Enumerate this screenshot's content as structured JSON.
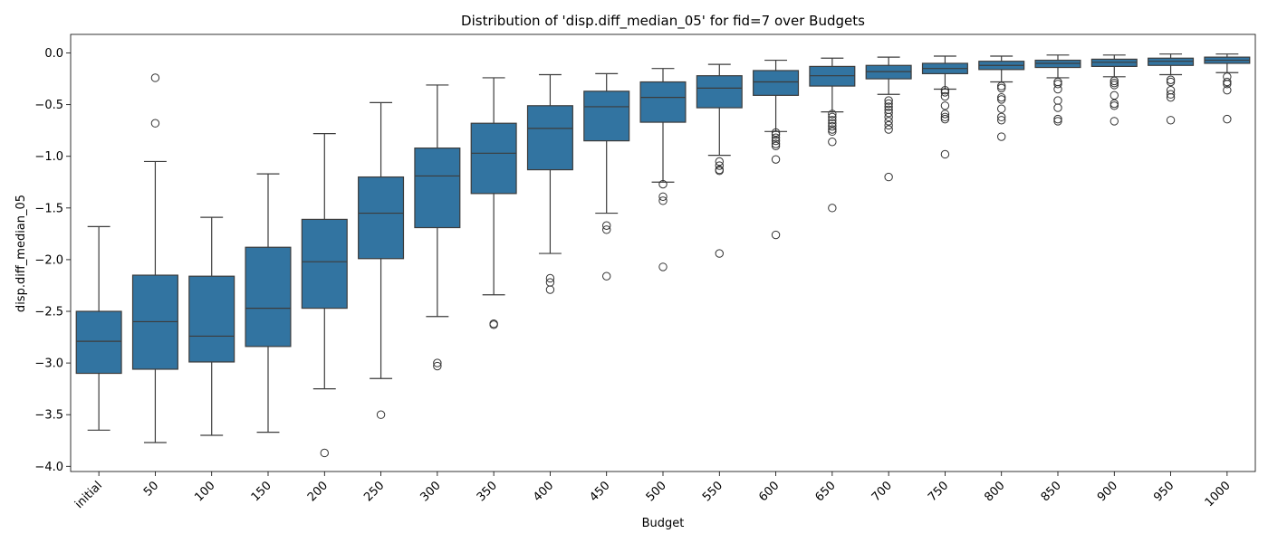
{
  "chart_data": {
    "type": "box",
    "title": "Distribution of 'disp.diff_median_05' for fid=7 over Budgets",
    "xlabel": "Budget",
    "ylabel": "disp.diff_median_05",
    "ylim": [
      -4.05,
      0.18
    ],
    "yticks": [
      0.0,
      -0.5,
      -1.0,
      -1.5,
      -2.0,
      -2.5,
      -3.0,
      -3.5,
      -4.0
    ],
    "ytick_labels": [
      "0.0",
      "−0.5",
      "−1.0",
      "−1.5",
      "−2.0",
      "−2.5",
      "−3.0",
      "−3.5",
      "−4.0"
    ],
    "box_color": "#3274a1",
    "line_color": "#3c3c3c",
    "grid": false,
    "boxes": [
      {
        "category": "initial",
        "whisker_low": -3.65,
        "q1": -3.1,
        "median": -2.79,
        "q3": -2.5,
        "whisker_high": -1.68,
        "outliers": []
      },
      {
        "category": "50",
        "whisker_low": -3.77,
        "q1": -3.06,
        "median": -2.6,
        "q3": -2.15,
        "whisker_high": -1.05,
        "outliers": [
          -0.24,
          -0.68
        ]
      },
      {
        "category": "100",
        "whisker_low": -3.7,
        "q1": -2.99,
        "median": -2.74,
        "q3": -2.16,
        "whisker_high": -1.59,
        "outliers": []
      },
      {
        "category": "150",
        "whisker_low": -3.67,
        "q1": -2.84,
        "median": -2.47,
        "q3": -1.88,
        "whisker_high": -1.17,
        "outliers": []
      },
      {
        "category": "200",
        "whisker_low": -3.25,
        "q1": -2.47,
        "median": -2.02,
        "q3": -1.61,
        "whisker_high": -0.78,
        "outliers": [
          -3.87
        ]
      },
      {
        "category": "250",
        "whisker_low": -3.15,
        "q1": -1.99,
        "median": -1.55,
        "q3": -1.2,
        "whisker_high": -0.48,
        "outliers": [
          -3.5
        ]
      },
      {
        "category": "300",
        "whisker_low": -2.55,
        "q1": -1.69,
        "median": -1.19,
        "q3": -0.92,
        "whisker_high": -0.31,
        "outliers": [
          -3.0,
          -3.03
        ]
      },
      {
        "category": "350",
        "whisker_low": -2.34,
        "q1": -1.36,
        "median": -0.97,
        "q3": -0.68,
        "whisker_high": -0.24,
        "outliers": [
          -2.62,
          -2.63
        ]
      },
      {
        "category": "400",
        "whisker_low": -1.94,
        "q1": -1.13,
        "median": -0.73,
        "q3": -0.51,
        "whisker_high": -0.21,
        "outliers": [
          -2.18,
          -2.22,
          -2.29
        ]
      },
      {
        "category": "450",
        "whisker_low": -1.55,
        "q1": -0.85,
        "median": -0.52,
        "q3": -0.37,
        "whisker_high": -0.2,
        "outliers": [
          -1.67,
          -1.71,
          -2.16
        ]
      },
      {
        "category": "500",
        "whisker_low": -1.25,
        "q1": -0.67,
        "median": -0.43,
        "q3": -0.28,
        "whisker_high": -0.15,
        "outliers": [
          -1.27,
          -1.39,
          -1.43,
          -2.07
        ]
      },
      {
        "category": "550",
        "whisker_low": -0.99,
        "q1": -0.53,
        "median": -0.34,
        "q3": -0.22,
        "whisker_high": -0.11,
        "outliers": [
          -1.05,
          -1.09,
          -1.13,
          -1.14,
          -1.94
        ]
      },
      {
        "category": "600",
        "whisker_low": -0.76,
        "q1": -0.41,
        "median": -0.28,
        "q3": -0.17,
        "whisker_high": -0.07,
        "outliers": [
          -0.77,
          -0.79,
          -0.82,
          -0.85,
          -0.88,
          -0.9,
          -1.03,
          -1.76
        ]
      },
      {
        "category": "650",
        "whisker_low": -0.57,
        "q1": -0.32,
        "median": -0.22,
        "q3": -0.13,
        "whisker_high": -0.05,
        "outliers": [
          -0.59,
          -0.62,
          -0.65,
          -0.68,
          -0.71,
          -0.74,
          -0.76,
          -0.86,
          -1.5
        ]
      },
      {
        "category": "700",
        "whisker_low": -0.4,
        "q1": -0.25,
        "median": -0.18,
        "q3": -0.12,
        "whisker_high": -0.04,
        "outliers": [
          -0.46,
          -0.49,
          -0.52,
          -0.55,
          -0.58,
          -0.62,
          -0.66,
          -0.7,
          -0.74,
          -1.2
        ]
      },
      {
        "category": "750",
        "whisker_low": -0.35,
        "q1": -0.2,
        "median": -0.15,
        "q3": -0.1,
        "whisker_high": -0.03,
        "outliers": [
          -0.36,
          -0.38,
          -0.42,
          -0.51,
          -0.59,
          -0.62,
          -0.64,
          -0.98
        ]
      },
      {
        "category": "800",
        "whisker_low": -0.28,
        "q1": -0.16,
        "median": -0.12,
        "q3": -0.08,
        "whisker_high": -0.03,
        "outliers": [
          -0.32,
          -0.34,
          -0.43,
          -0.45,
          -0.54,
          -0.62,
          -0.65,
          -0.81
        ]
      },
      {
        "category": "850",
        "whisker_low": -0.24,
        "q1": -0.14,
        "median": -0.1,
        "q3": -0.07,
        "whisker_high": -0.02,
        "outliers": [
          -0.28,
          -0.3,
          -0.35,
          -0.46,
          -0.53,
          -0.64,
          -0.66
        ]
      },
      {
        "category": "900",
        "whisker_low": -0.23,
        "q1": -0.13,
        "median": -0.09,
        "q3": -0.06,
        "whisker_high": -0.02,
        "outliers": [
          -0.27,
          -0.29,
          -0.31,
          -0.41,
          -0.49,
          -0.51,
          -0.66
        ]
      },
      {
        "category": "950",
        "whisker_low": -0.21,
        "q1": -0.12,
        "median": -0.08,
        "q3": -0.05,
        "whisker_high": -0.01,
        "outliers": [
          -0.26,
          -0.28,
          -0.36,
          -0.4,
          -0.43,
          -0.65
        ]
      },
      {
        "category": "1000",
        "whisker_low": -0.19,
        "q1": -0.1,
        "median": -0.07,
        "q3": -0.04,
        "whisker_high": -0.01,
        "outliers": [
          -0.23,
          -0.28,
          -0.3,
          -0.36,
          -0.64
        ]
      }
    ]
  }
}
